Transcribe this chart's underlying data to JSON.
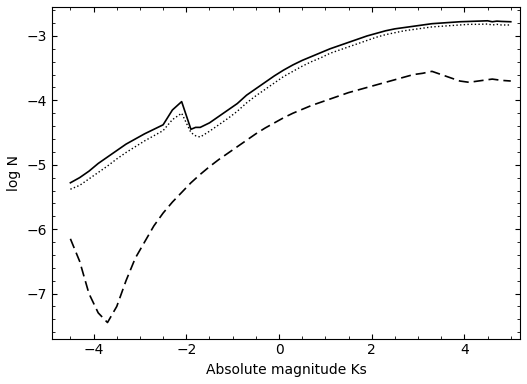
{
  "xlabel": "Absolute magnitude Ks",
  "ylabel": "log N",
  "xlim": [
    -4.9,
    5.2
  ],
  "ylim": [
    -7.7,
    -2.55
  ],
  "yticks": [
    -7,
    -6,
    -5,
    -4,
    -3
  ],
  "xticks": [
    -4,
    -2,
    0,
    2,
    4
  ],
  "solid_x": [
    -4.5,
    -4.3,
    -4.1,
    -3.9,
    -3.7,
    -3.5,
    -3.3,
    -3.1,
    -2.9,
    -2.7,
    -2.5,
    -2.3,
    -2.1,
    -1.9,
    -1.8,
    -1.7,
    -1.5,
    -1.3,
    -1.1,
    -0.9,
    -0.7,
    -0.5,
    -0.3,
    -0.1,
    0.1,
    0.3,
    0.5,
    0.7,
    0.9,
    1.1,
    1.3,
    1.5,
    1.7,
    1.9,
    2.1,
    2.3,
    2.5,
    2.7,
    2.9,
    3.1,
    3.3,
    3.5,
    3.7,
    3.9,
    4.1,
    4.3,
    4.5,
    4.6,
    4.7,
    4.8,
    5.0
  ],
  "solid_y": [
    -5.28,
    -5.2,
    -5.1,
    -4.98,
    -4.88,
    -4.78,
    -4.68,
    -4.6,
    -4.52,
    -4.45,
    -4.38,
    -4.15,
    -4.02,
    -4.45,
    -4.42,
    -4.42,
    -4.35,
    -4.25,
    -4.15,
    -4.05,
    -3.92,
    -3.82,
    -3.72,
    -3.62,
    -3.53,
    -3.45,
    -3.38,
    -3.32,
    -3.26,
    -3.2,
    -3.15,
    -3.1,
    -3.05,
    -3.0,
    -2.96,
    -2.92,
    -2.89,
    -2.87,
    -2.85,
    -2.83,
    -2.81,
    -2.8,
    -2.79,
    -2.78,
    -2.775,
    -2.77,
    -2.765,
    -2.78,
    -2.77,
    -2.775,
    -2.78
  ],
  "dotted_x": [
    -4.5,
    -4.3,
    -4.1,
    -3.9,
    -3.7,
    -3.5,
    -3.3,
    -3.1,
    -2.9,
    -2.7,
    -2.5,
    -2.3,
    -2.1,
    -1.9,
    -1.8,
    -1.7,
    -1.5,
    -1.3,
    -1.1,
    -0.9,
    -0.7,
    -0.5,
    -0.3,
    -0.1,
    0.1,
    0.3,
    0.5,
    0.7,
    0.9,
    1.1,
    1.3,
    1.5,
    1.7,
    1.9,
    2.1,
    2.3,
    2.5,
    2.7,
    2.9,
    3.1,
    3.3,
    3.5,
    3.7,
    3.9,
    4.1,
    4.3,
    4.5,
    4.6,
    4.7,
    4.8,
    5.0
  ],
  "dotted_y": [
    -5.38,
    -5.32,
    -5.22,
    -5.12,
    -5.02,
    -4.91,
    -4.81,
    -4.72,
    -4.63,
    -4.55,
    -4.47,
    -4.3,
    -4.2,
    -4.5,
    -4.55,
    -4.57,
    -4.48,
    -4.38,
    -4.28,
    -4.17,
    -4.04,
    -3.93,
    -3.83,
    -3.73,
    -3.63,
    -3.55,
    -3.47,
    -3.4,
    -3.34,
    -3.27,
    -3.22,
    -3.17,
    -3.12,
    -3.07,
    -3.02,
    -2.98,
    -2.95,
    -2.92,
    -2.9,
    -2.88,
    -2.86,
    -2.85,
    -2.84,
    -2.83,
    -2.82,
    -2.82,
    -2.815,
    -2.83,
    -2.82,
    -2.83,
    -2.83
  ],
  "dashed_x": [
    -4.5,
    -4.3,
    -4.1,
    -3.9,
    -3.7,
    -3.5,
    -3.3,
    -3.1,
    -2.9,
    -2.7,
    -2.5,
    -2.3,
    -2.1,
    -1.9,
    -1.7,
    -1.5,
    -1.3,
    -1.1,
    -0.9,
    -0.7,
    -0.5,
    -0.3,
    -0.1,
    0.1,
    0.3,
    0.5,
    0.7,
    0.9,
    1.1,
    1.3,
    1.5,
    1.7,
    1.9,
    2.1,
    2.3,
    2.5,
    2.7,
    2.9,
    3.1,
    3.3,
    3.5,
    3.7,
    3.9,
    4.1,
    4.3,
    4.5,
    4.6,
    4.7,
    4.8,
    5.0
  ],
  "dashed_y": [
    -6.15,
    -6.5,
    -7.0,
    -7.3,
    -7.45,
    -7.2,
    -6.8,
    -6.45,
    -6.2,
    -5.95,
    -5.75,
    -5.58,
    -5.43,
    -5.28,
    -5.15,
    -5.03,
    -4.92,
    -4.82,
    -4.72,
    -4.62,
    -4.52,
    -4.43,
    -4.35,
    -4.27,
    -4.2,
    -4.14,
    -4.08,
    -4.03,
    -3.98,
    -3.93,
    -3.88,
    -3.84,
    -3.8,
    -3.76,
    -3.72,
    -3.68,
    -3.64,
    -3.6,
    -3.58,
    -3.55,
    -3.6,
    -3.65,
    -3.7,
    -3.72,
    -3.7,
    -3.68,
    -3.67,
    -3.68,
    -3.69,
    -3.7
  ]
}
